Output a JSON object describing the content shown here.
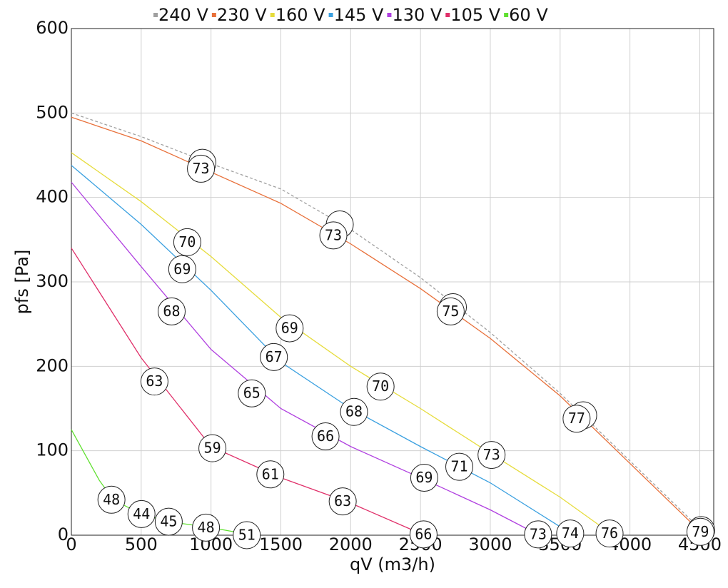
{
  "chart_data": {
    "type": "line",
    "x_label": "qV (m3/h)",
    "y_label": "pfs [Pa]",
    "xlim": [
      0,
      4600
    ],
    "ylim": [
      0,
      600
    ],
    "xticks": [
      0,
      500,
      1000,
      1500,
      2000,
      2500,
      3000,
      3500,
      4000,
      4500
    ],
    "yticks": [
      0,
      100,
      200,
      300,
      400,
      500,
      600
    ],
    "grid": true,
    "legend": "top",
    "series": [
      {
        "name": "240 V",
        "color": "#a0a0a0",
        "dashed": true,
        "x": [
          0,
          500,
          1000,
          1500,
          2000,
          2500,
          3000,
          3500,
          4000,
          4500,
          4570
        ],
        "values": [
          500,
          472,
          440,
          410,
          362,
          305,
          240,
          168,
          88,
          8,
          0
        ],
        "markers": {
          "x": [
            938,
            1922,
            2732,
            3665,
            4510
          ],
          "values": [
            441,
            368,
            270,
            142,
            6
          ]
        }
      },
      {
        "name": "230 V",
        "color": "#e8703a",
        "x": [
          0,
          500,
          1000,
          1500,
          2000,
          2500,
          3000,
          3500,
          4000,
          4500,
          4560
        ],
        "values": [
          495,
          467,
          430,
          393,
          345,
          292,
          233,
          165,
          85,
          5,
          0
        ],
        "markers": {
          "x": [
            928,
            1876,
            2716,
            3618,
            4505
          ],
          "values": [
            434,
            355,
            265,
            138,
            4
          ],
          "labels": [
            73,
            73,
            75,
            77,
            79
          ]
        }
      },
      {
        "name": "160 V",
        "color": "#e6dc3c",
        "x": [
          0,
          500,
          1000,
          1500,
          2000,
          2500,
          3000,
          3500,
          3880
        ],
        "values": [
          453,
          395,
          330,
          258,
          200,
          150,
          97,
          45,
          0
        ],
        "markers": {
          "x": [
            830,
            1563,
            2214,
            3009,
            3854
          ],
          "values": [
            347,
            245,
            176,
            95,
            2
          ],
          "labels": [
            70,
            69,
            70,
            73,
            76
          ]
        }
      },
      {
        "name": "145 V",
        "color": "#3aa0e0",
        "x": [
          0,
          500,
          1000,
          1500,
          2000,
          2500,
          3000,
          3500,
          3560
        ],
        "values": [
          438,
          368,
          290,
          205,
          150,
          105,
          62,
          10,
          0
        ],
        "markers": {
          "x": [
            794,
            1450,
            2024,
            2778,
            3572
          ],
          "values": [
            315,
            211,
            146,
            81,
            2
          ],
          "labels": [
            69,
            67,
            68,
            71,
            74
          ]
        }
      },
      {
        "name": "130 V",
        "color": "#b040e0",
        "x": [
          0,
          500,
          1000,
          1500,
          2000,
          2500,
          3000,
          3350
        ],
        "values": [
          418,
          318,
          220,
          150,
          105,
          68,
          30,
          0
        ],
        "markers": {
          "x": [
            718,
            1292,
            1820,
            2527,
            3342
          ],
          "values": [
            265,
            168,
            117,
            68,
            1
          ],
          "labels": [
            68,
            65,
            66,
            69,
            73
          ]
        }
      },
      {
        "name": "105 V",
        "color": "#e0306a",
        "x": [
          0,
          500,
          1000,
          1500,
          2000,
          2500,
          2520
        ],
        "values": [
          340,
          210,
          105,
          68,
          38,
          2,
          0
        ],
        "markers": {
          "x": [
            595,
            1010,
            1425,
            1943,
            2522
          ],
          "values": [
            182,
            103,
            72,
            40,
            1
          ],
          "labels": [
            63,
            59,
            61,
            63,
            66
          ]
        }
      },
      {
        "name": "60 V",
        "color": "#60e030",
        "x": [
          0,
          100,
          200,
          300,
          500,
          700,
          1000,
          1300
        ],
        "values": [
          125,
          95,
          65,
          42,
          25,
          16,
          9,
          0
        ],
        "markers": {
          "x": [
            287,
            502,
            697,
            964,
            1256
          ],
          "values": [
            42,
            25,
            16,
            9,
            0
          ],
          "labels": [
            48,
            44,
            45,
            48,
            51
          ]
        }
      }
    ]
  }
}
